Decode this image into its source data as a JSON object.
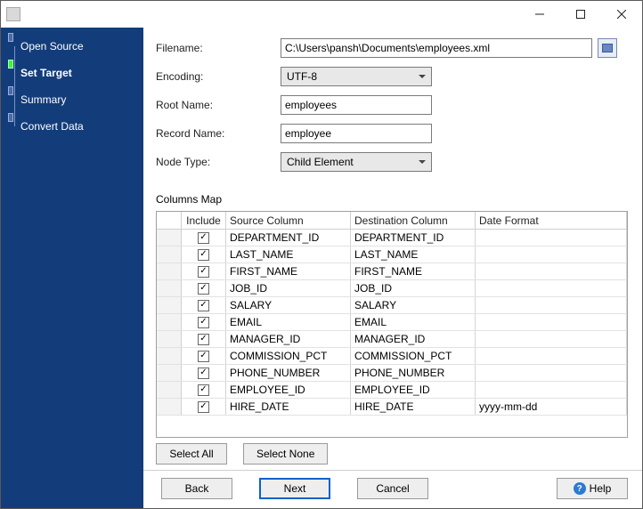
{
  "window": {
    "title": ""
  },
  "sidebar": {
    "items": [
      {
        "label": "Open Source",
        "active": false
      },
      {
        "label": "Set Target",
        "active": true
      },
      {
        "label": "Summary",
        "active": false
      },
      {
        "label": "Convert Data",
        "active": false
      }
    ]
  },
  "form": {
    "filename_label": "Filename:",
    "filename_value": "C:\\Users\\pansh\\Documents\\employees.xml",
    "encoding_label": "Encoding:",
    "encoding_value": "UTF-8",
    "root_label": "Root Name:",
    "root_value": "employees",
    "record_label": "Record Name:",
    "record_value": "employee",
    "node_label": "Node Type:",
    "node_value": "Child Element"
  },
  "columns_map": {
    "title": "Columns Map",
    "headers": {
      "include": "Include",
      "source": "Source Column",
      "dest": "Destination Column",
      "fmt": "Date Format"
    },
    "rows": [
      {
        "include": true,
        "source": "DEPARTMENT_ID",
        "dest": "DEPARTMENT_ID",
        "fmt": ""
      },
      {
        "include": true,
        "source": "LAST_NAME",
        "dest": "LAST_NAME",
        "fmt": ""
      },
      {
        "include": true,
        "source": "FIRST_NAME",
        "dest": "FIRST_NAME",
        "fmt": ""
      },
      {
        "include": true,
        "source": "JOB_ID",
        "dest": "JOB_ID",
        "fmt": ""
      },
      {
        "include": true,
        "source": "SALARY",
        "dest": "SALARY",
        "fmt": ""
      },
      {
        "include": true,
        "source": "EMAIL",
        "dest": "EMAIL",
        "fmt": ""
      },
      {
        "include": true,
        "source": "MANAGER_ID",
        "dest": "MANAGER_ID",
        "fmt": ""
      },
      {
        "include": true,
        "source": "COMMISSION_PCT",
        "dest": "COMMISSION_PCT",
        "fmt": ""
      },
      {
        "include": true,
        "source": "PHONE_NUMBER",
        "dest": "PHONE_NUMBER",
        "fmt": ""
      },
      {
        "include": true,
        "source": "EMPLOYEE_ID",
        "dest": "EMPLOYEE_ID",
        "fmt": ""
      },
      {
        "include": true,
        "source": "HIRE_DATE",
        "dest": "HIRE_DATE",
        "fmt": "yyyy-mm-dd"
      }
    ]
  },
  "buttons": {
    "select_all": "Select All",
    "select_none": "Select None",
    "back": "Back",
    "next": "Next",
    "cancel": "Cancel",
    "help": "Help"
  },
  "colors": {
    "sidebar_bg": "#133c7a",
    "active_step": "#31ff2f",
    "primary_border": "#0a62c9"
  }
}
